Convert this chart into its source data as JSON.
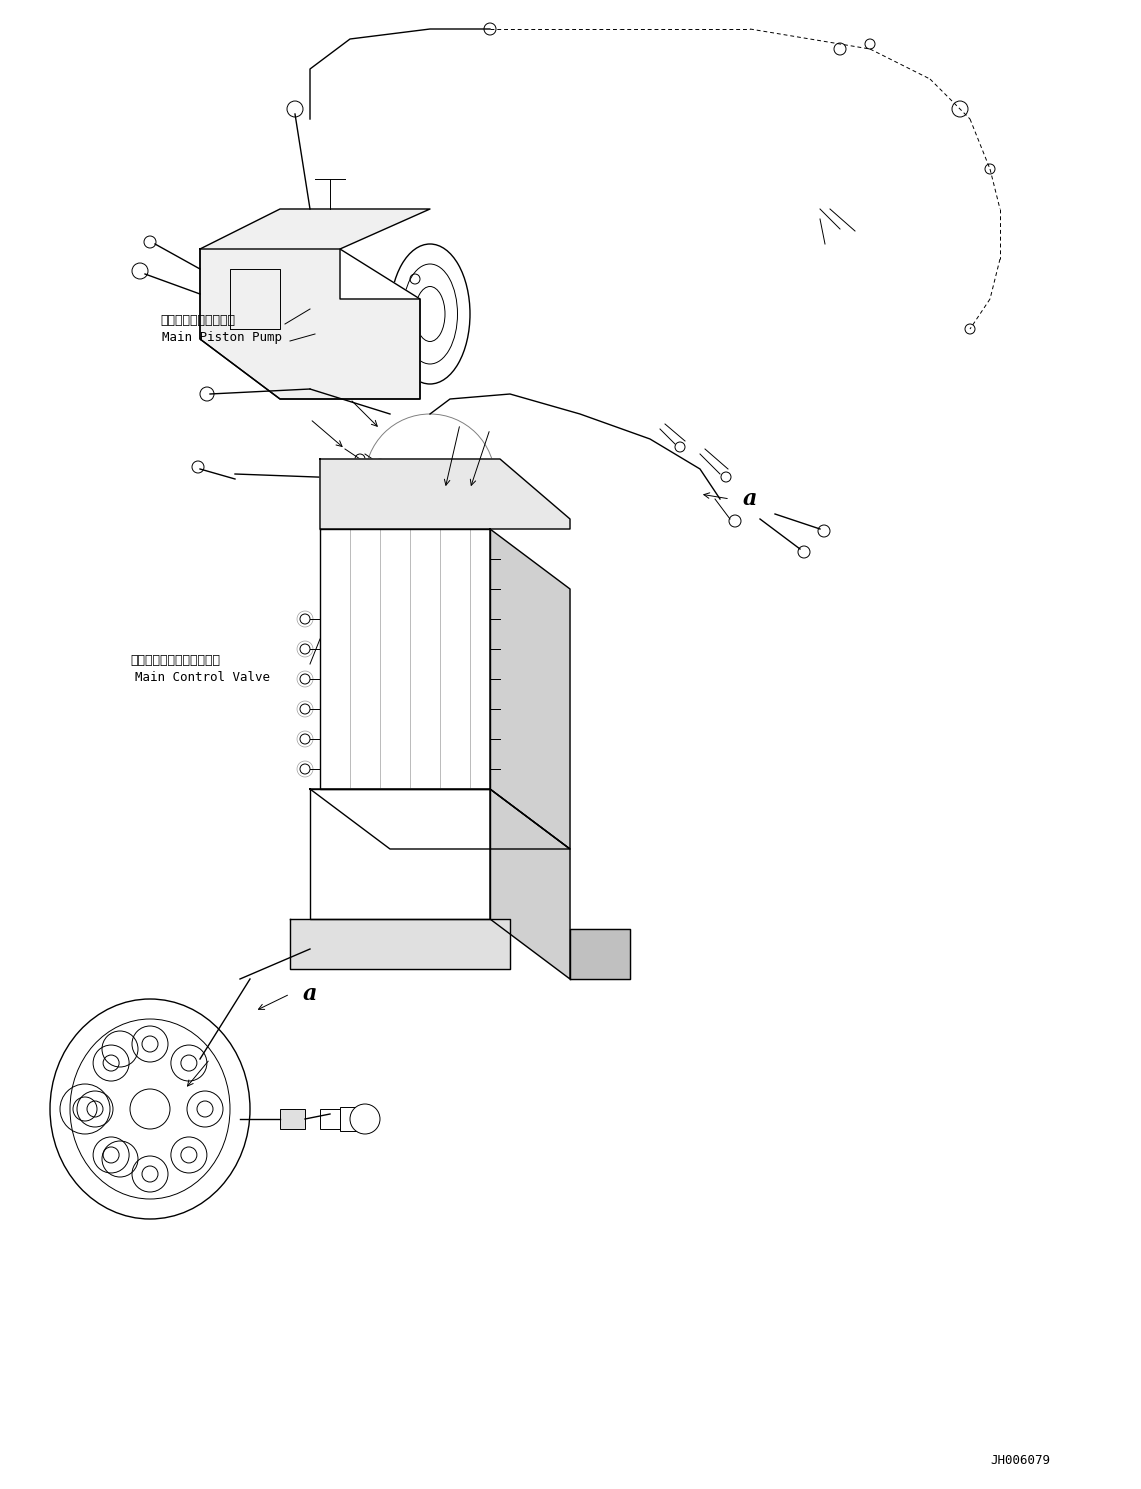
{
  "bg_color": "#ffffff",
  "line_color": "#000000",
  "fig_width": 11.41,
  "fig_height": 14.89,
  "dpi": 100,
  "label_main_piston_pump_jp": "メインピストンポンプ",
  "label_main_piston_pump_en": "Main Piston Pump",
  "label_main_control_valve_jp": "メインコントロールバルブ",
  "label_main_control_valve_en": "Main Control Valve",
  "label_a": "a",
  "code": "JH006079"
}
